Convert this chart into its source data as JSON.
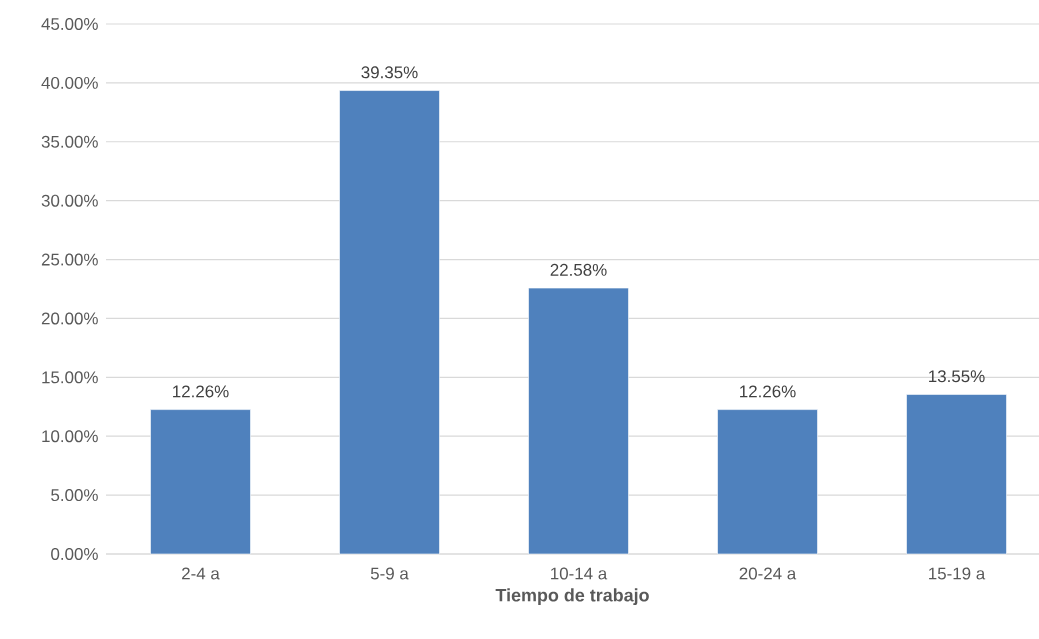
{
  "chart_data": {
    "type": "bar",
    "xlabel": "Tiempo de trabajo",
    "categories": [
      "2-4 a",
      "5-9 a",
      "10-14 a",
      "20-24 a",
      "15-19 a"
    ],
    "values": [
      12.26,
      39.35,
      22.58,
      12.26,
      13.55
    ],
    "value_labels": [
      "12.26%",
      "39.35%",
      "22.58%",
      "12.26%",
      "13.55%"
    ],
    "color": "#4f81bd",
    "ylim": [
      0,
      45
    ],
    "yticks": [
      {
        "value": 0,
        "label": "0.00%"
      },
      {
        "value": 5,
        "label": "5.00%"
      },
      {
        "value": 10,
        "label": "10.00%"
      },
      {
        "value": 15,
        "label": "15.00%"
      },
      {
        "value": 20,
        "label": "20.00%"
      },
      {
        "value": 25,
        "label": "25.00%"
      },
      {
        "value": 30,
        "label": "30.00%"
      },
      {
        "value": 35,
        "label": "35.00%"
      },
      {
        "value": 40,
        "label": "40.00%"
      },
      {
        "value": 45,
        "label": "45.00%"
      }
    ],
    "grid": "y"
  }
}
